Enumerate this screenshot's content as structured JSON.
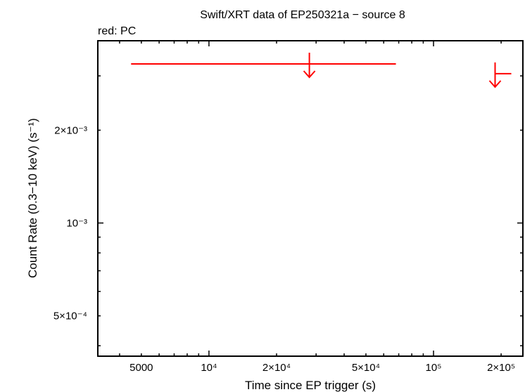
{
  "chart_data": {
    "type": "scatter",
    "title": "Swift/XRT data of EP250321a − source 8",
    "subtitle": "red: PC",
    "xlabel": "Time since EP trigger (s)",
    "ylabel": "Count Rate (0.3−10 keV) (s⁻¹)",
    "x_scale": "log",
    "y_scale": "log",
    "xlim": [
      3200,
      250000
    ],
    "ylim": [
      0.00037,
      0.0039
    ],
    "x_ticks": [
      {
        "value": 5000,
        "label": "5000"
      },
      {
        "value": 10000,
        "label": "10⁴"
      },
      {
        "value": 20000,
        "label": "2×10⁴"
      },
      {
        "value": 50000,
        "label": "5×10⁴"
      },
      {
        "value": 100000,
        "label": "10⁵"
      },
      {
        "value": 200000,
        "label": "2×10⁵"
      }
    ],
    "y_ticks": [
      {
        "value": 0.0005,
        "label": "5×10⁻⁴"
      },
      {
        "value": 0.001,
        "label": "10⁻³"
      },
      {
        "value": 0.002,
        "label": "2×10⁻³"
      }
    ],
    "series": [
      {
        "name": "PC",
        "color": "#ff0000",
        "kind": "upper_limit",
        "points": [
          {
            "x": 28000,
            "y": 0.00328,
            "xerr_low": 4500,
            "xerr_high": 68000
          },
          {
            "x": 188000,
            "y": 0.00305,
            "xerr_low": 188000,
            "xerr_high": 222000
          }
        ]
      }
    ]
  }
}
